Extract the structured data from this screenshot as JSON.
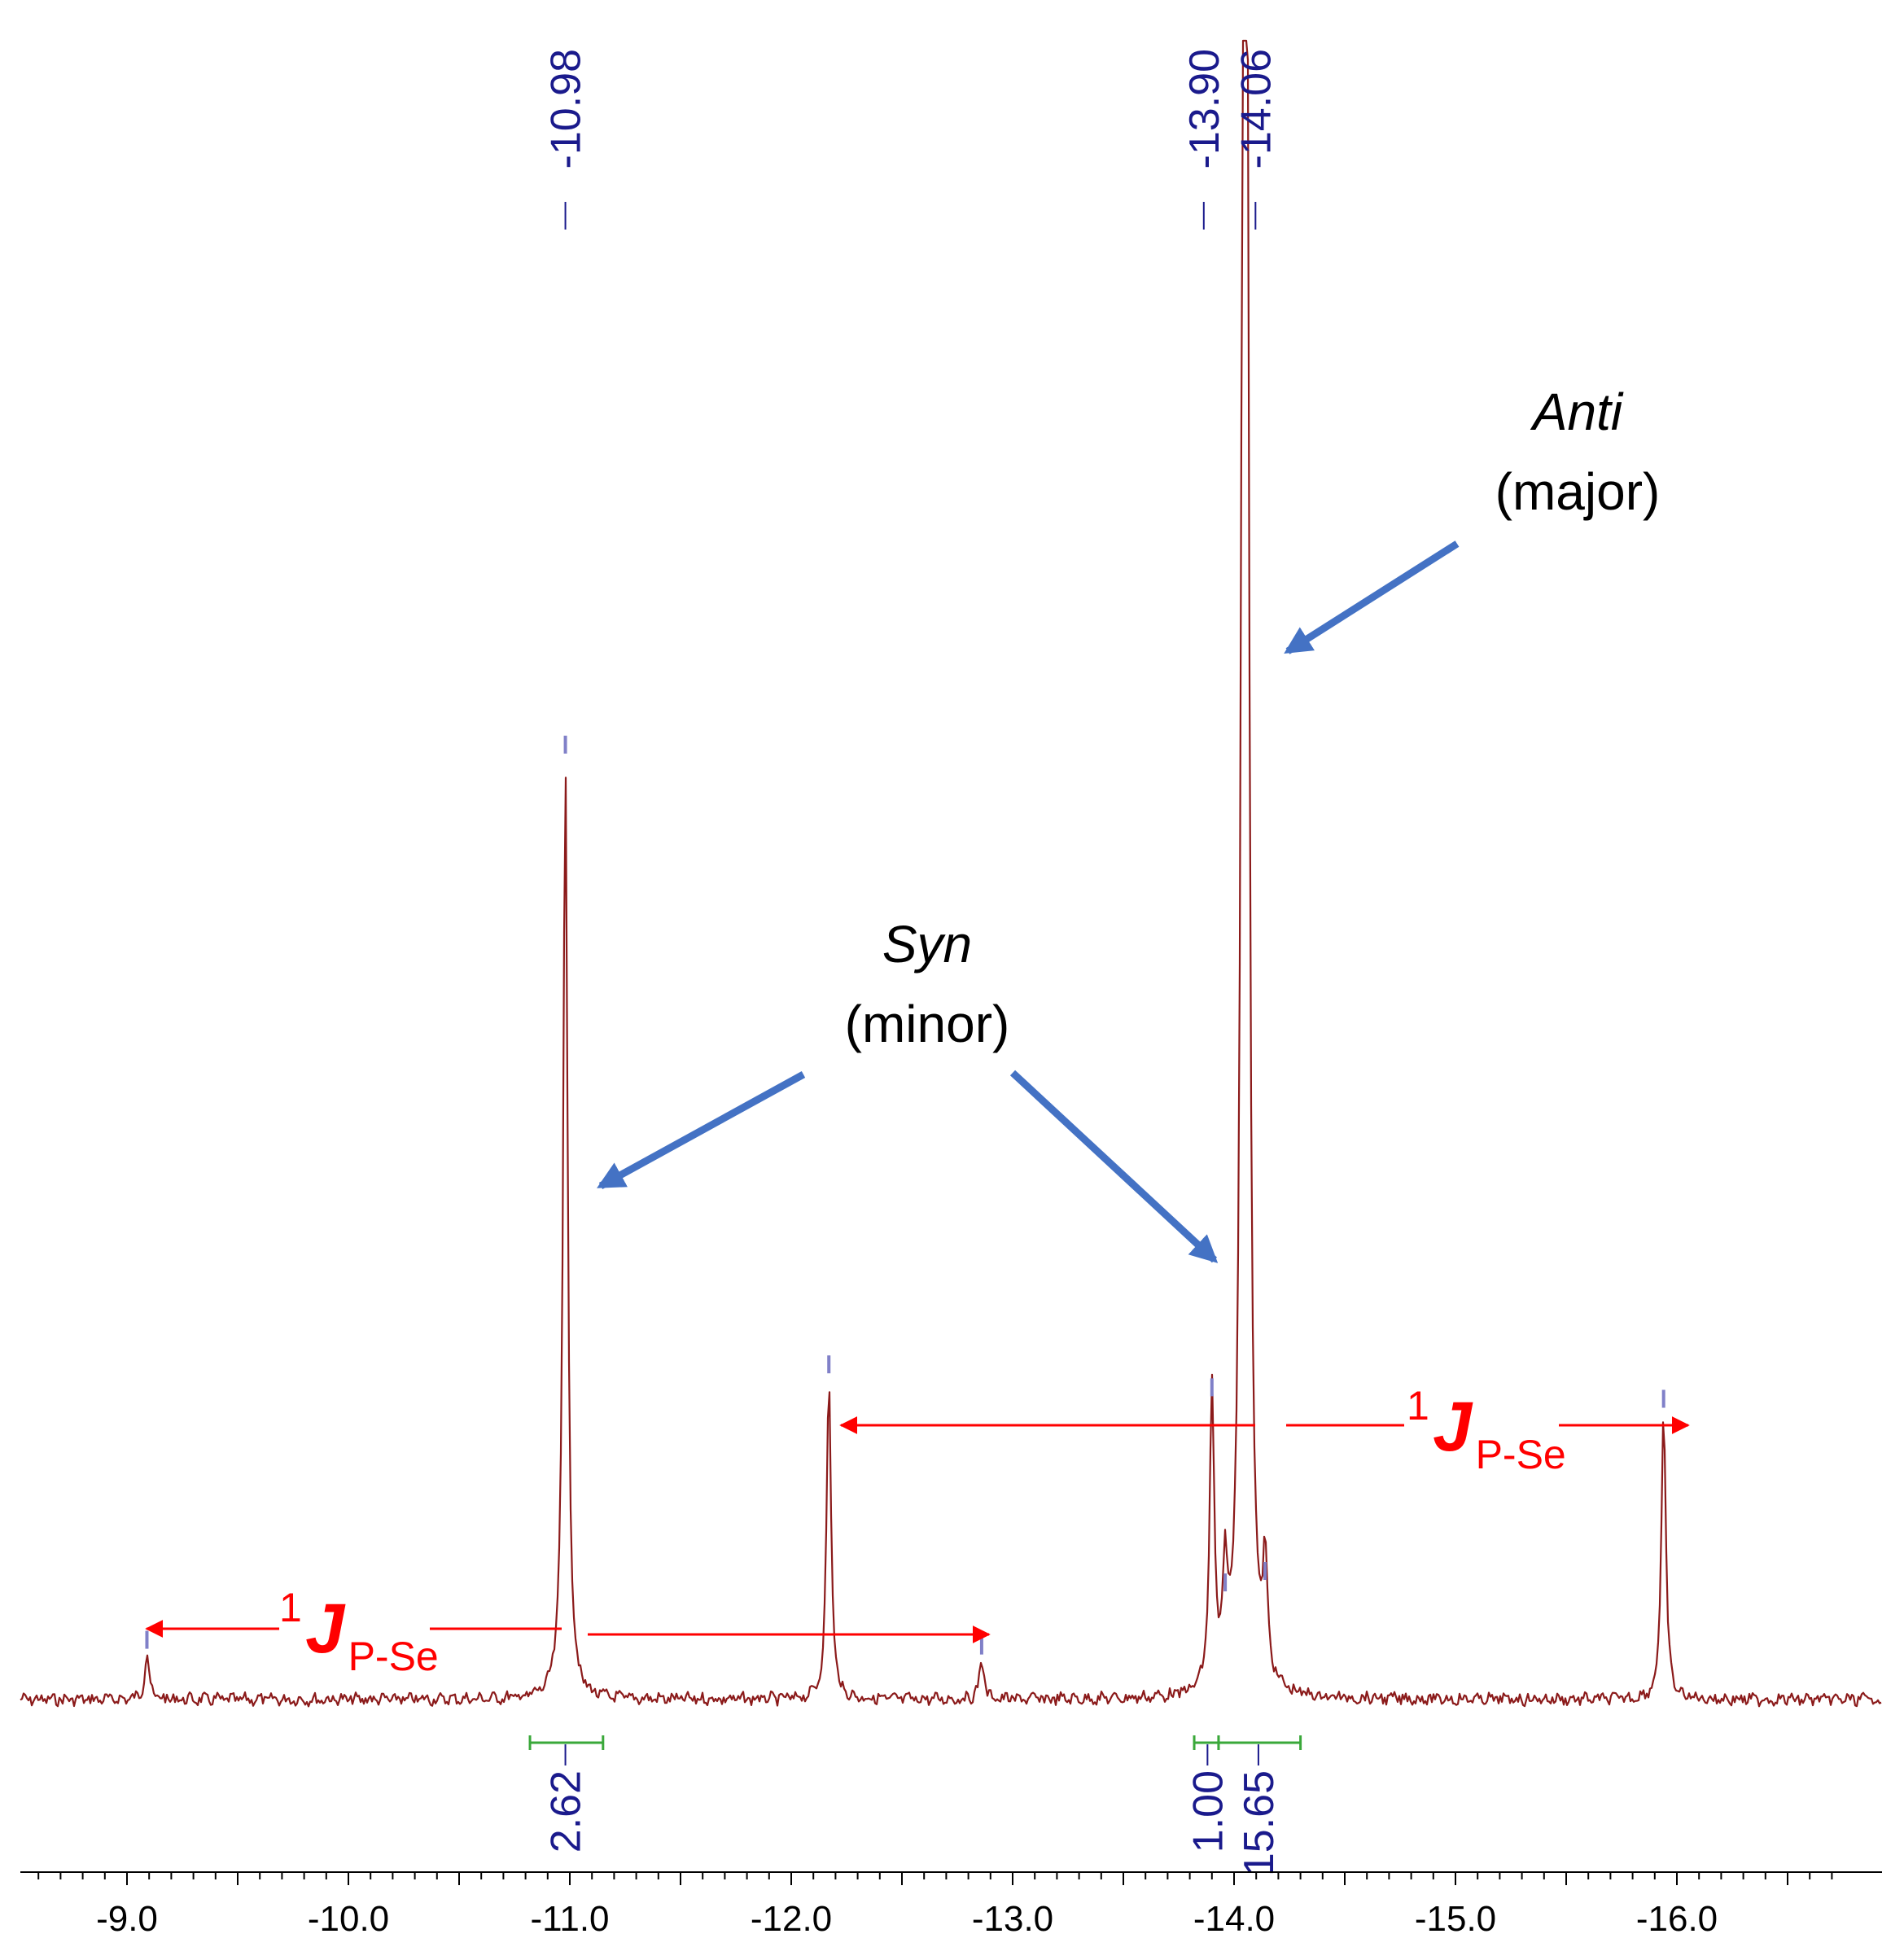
{
  "chart_data": {
    "type": "line",
    "title": "",
    "xlabel": "",
    "ylabel": "",
    "x_axis": {
      "range": [
        -8.5,
        -16.75
      ],
      "reversed": true,
      "major_ticks": [
        -9.0,
        -10.0,
        -11.0,
        -12.0,
        -13.0,
        -14.0,
        -15.0,
        -16.0
      ],
      "tick_labels": [
        "-9.0",
        "-10.0",
        "-11.0",
        "-12.0",
        "-13.0",
        "-14.0",
        "-15.0",
        "-16.0"
      ],
      "minor_step": 0.1
    },
    "y_axis": {
      "visible": false,
      "range": [
        0,
        100
      ]
    },
    "grid": false,
    "series_color": "#8b1a1a",
    "peaks": [
      {
        "ppm": -9.09,
        "height": 4
      },
      {
        "ppm": -10.98,
        "height": 82
      },
      {
        "ppm": -12.17,
        "height": 28
      },
      {
        "ppm": -12.86,
        "height": 3.5
      },
      {
        "ppm": -13.9,
        "height": 26
      },
      {
        "ppm": -13.96,
        "height": 9
      },
      {
        "ppm": -14.04,
        "height": 120
      },
      {
        "ppm": -14.06,
        "height": 120
      },
      {
        "ppm": -14.14,
        "height": 10
      },
      {
        "ppm": -15.94,
        "height": 25
      }
    ],
    "peak_labels": [
      {
        "ppm": -10.98,
        "text": "-10.98"
      },
      {
        "ppm": -13.9,
        "text": "-13.90"
      },
      {
        "ppm": -14.06,
        "text": "-14.06"
      }
    ],
    "integrals": [
      {
        "from": -10.82,
        "to": -11.15,
        "center": -10.98,
        "value": "2.62"
      },
      {
        "from": -13.82,
        "to": -13.93,
        "center": -13.88,
        "value": "1.00"
      },
      {
        "from": -13.93,
        "to": -14.3,
        "center": -14.11,
        "value": "15.65"
      }
    ],
    "annotations": {
      "anti_title": "Anti",
      "anti_sub": "(major)",
      "syn_title": "Syn",
      "syn_sub": "(minor)",
      "coupling_sup": "1",
      "coupling_main": "J",
      "coupling_sub": "P-Se"
    },
    "arrow_color": "#4472c4",
    "coupling_color": "#ff0000",
    "integral_color": "#3aa83a"
  }
}
